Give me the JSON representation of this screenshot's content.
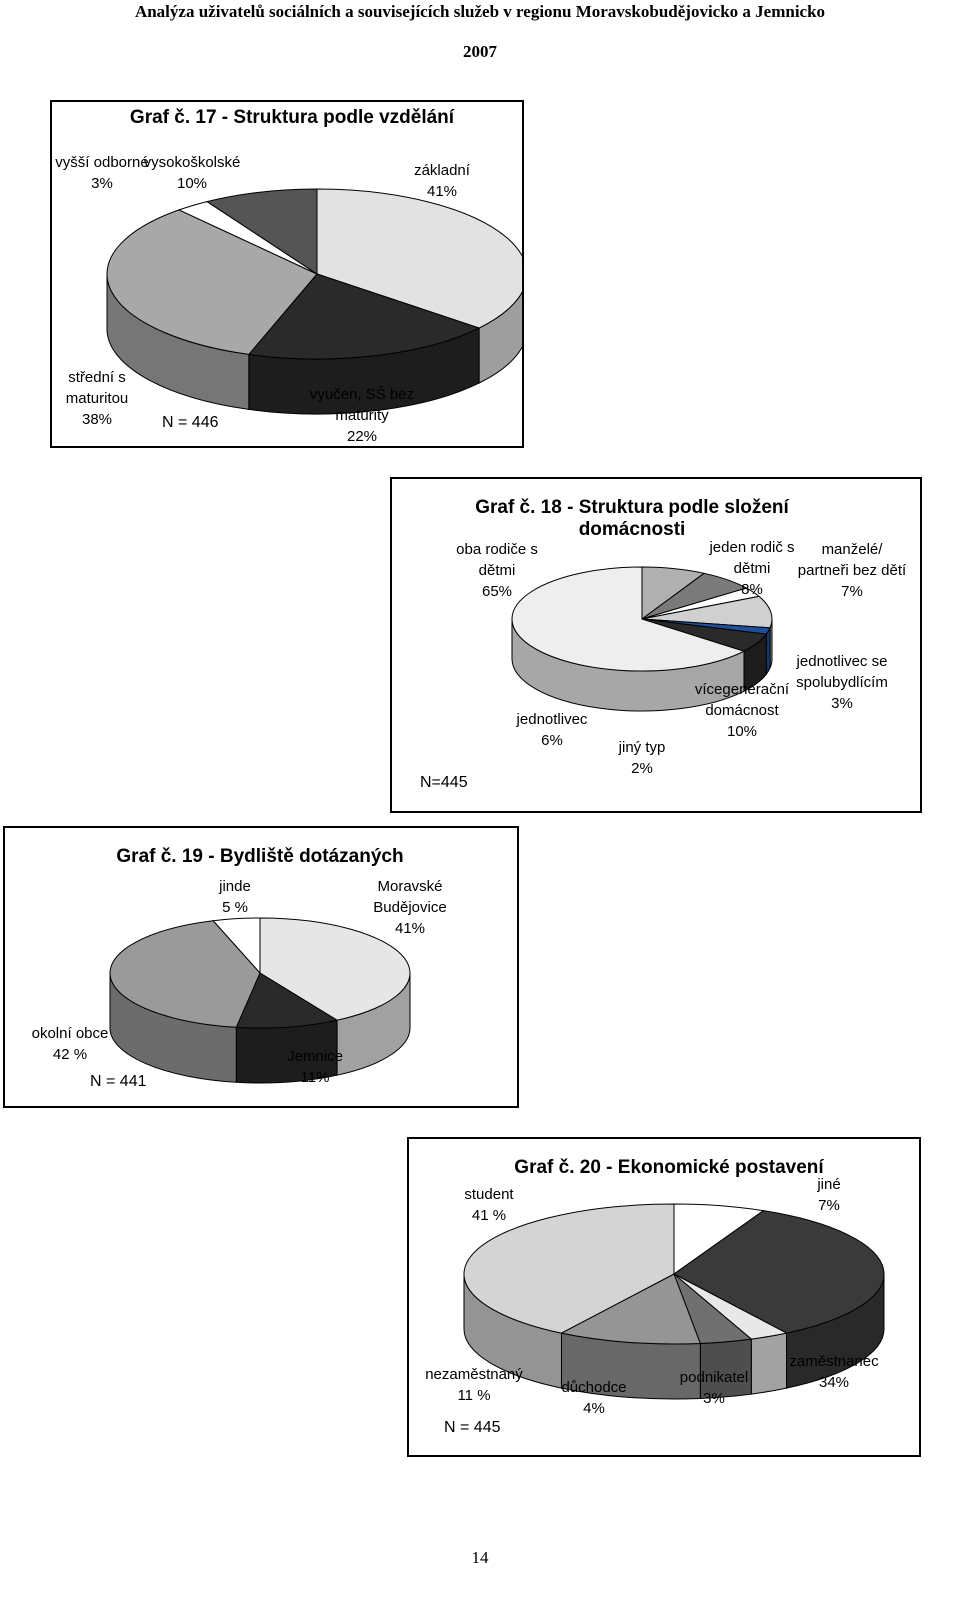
{
  "header": {
    "title": "Analýza uživatelů sociálních a souvisejících služeb v regionu Moravskobudějovicko a Jemnicko",
    "year": "2007"
  },
  "chart_data": [
    {
      "type": "pie",
      "title": "Graf č. 17 - Struktura podle vzdělání",
      "categories": [
        "základní",
        "vyučen, SŠ bez maturity",
        "střední s maturitou",
        "vyšší odborné",
        "vysokoškolské"
      ],
      "values": [
        41,
        22,
        38,
        3,
        10
      ],
      "value_labels": [
        "41%",
        "22%",
        "38%",
        "3%",
        "10%"
      ],
      "colors": [
        "#e2e2e2",
        "#2a2a2a",
        "#a8a8a8",
        "#ffffff",
        "#555555"
      ],
      "annotation": "N = 446"
    },
    {
      "type": "pie",
      "title": "Graf č. 18 - Struktura podle složení domácnosti",
      "categories": [
        "jeden rodič s dětmi",
        "manželé/ partneři bez dětí",
        "jednotlivec se spolubydlícím",
        "vícegenerační domácnost",
        "jiný typ",
        "jednotlivec",
        "oba rodiče s dětmi"
      ],
      "values": [
        8,
        7,
        3,
        10,
        2,
        6,
        65
      ],
      "value_labels": [
        "8%",
        "7%",
        "3%",
        "10%",
        "2%",
        "6%",
        "65%"
      ],
      "colors": [
        "#b0b0b0",
        "#7a7a7a",
        "#ffffff",
        "#d0d0d0",
        "#1f4e9a",
        "#2a2a2a",
        "#eeeeee"
      ],
      "annotation": "N=445"
    },
    {
      "type": "pie",
      "title": "Graf č. 19 - Bydliště dotázaných",
      "categories": [
        "Moravské Budějovice",
        "Jemnice",
        "okolní obce",
        "jinde"
      ],
      "values": [
        41,
        11,
        42,
        5
      ],
      "value_labels": [
        "41%",
        "11%",
        "42 %",
        "5 %"
      ],
      "colors": [
        "#e6e6e6",
        "#2a2a2a",
        "#9a9a9a",
        "#ffffff"
      ],
      "annotation": "N = 441"
    },
    {
      "type": "pie",
      "title": "Graf č. 20 - Ekonomické postavení",
      "categories": [
        "jiné",
        "zaměstnanec",
        "podnikatel",
        "důchodce",
        "nezaměstnaný",
        "student"
      ],
      "values": [
        7,
        34,
        3,
        4,
        11,
        41
      ],
      "value_labels": [
        "7%",
        "34%",
        "3%",
        "4%",
        "11 %",
        "41 %"
      ],
      "colors": [
        "#ffffff",
        "#3a3a3a",
        "#e8e8e8",
        "#707070",
        "#959595",
        "#d4d4d4"
      ],
      "annotation": "N = 445"
    }
  ],
  "page_number": "14"
}
